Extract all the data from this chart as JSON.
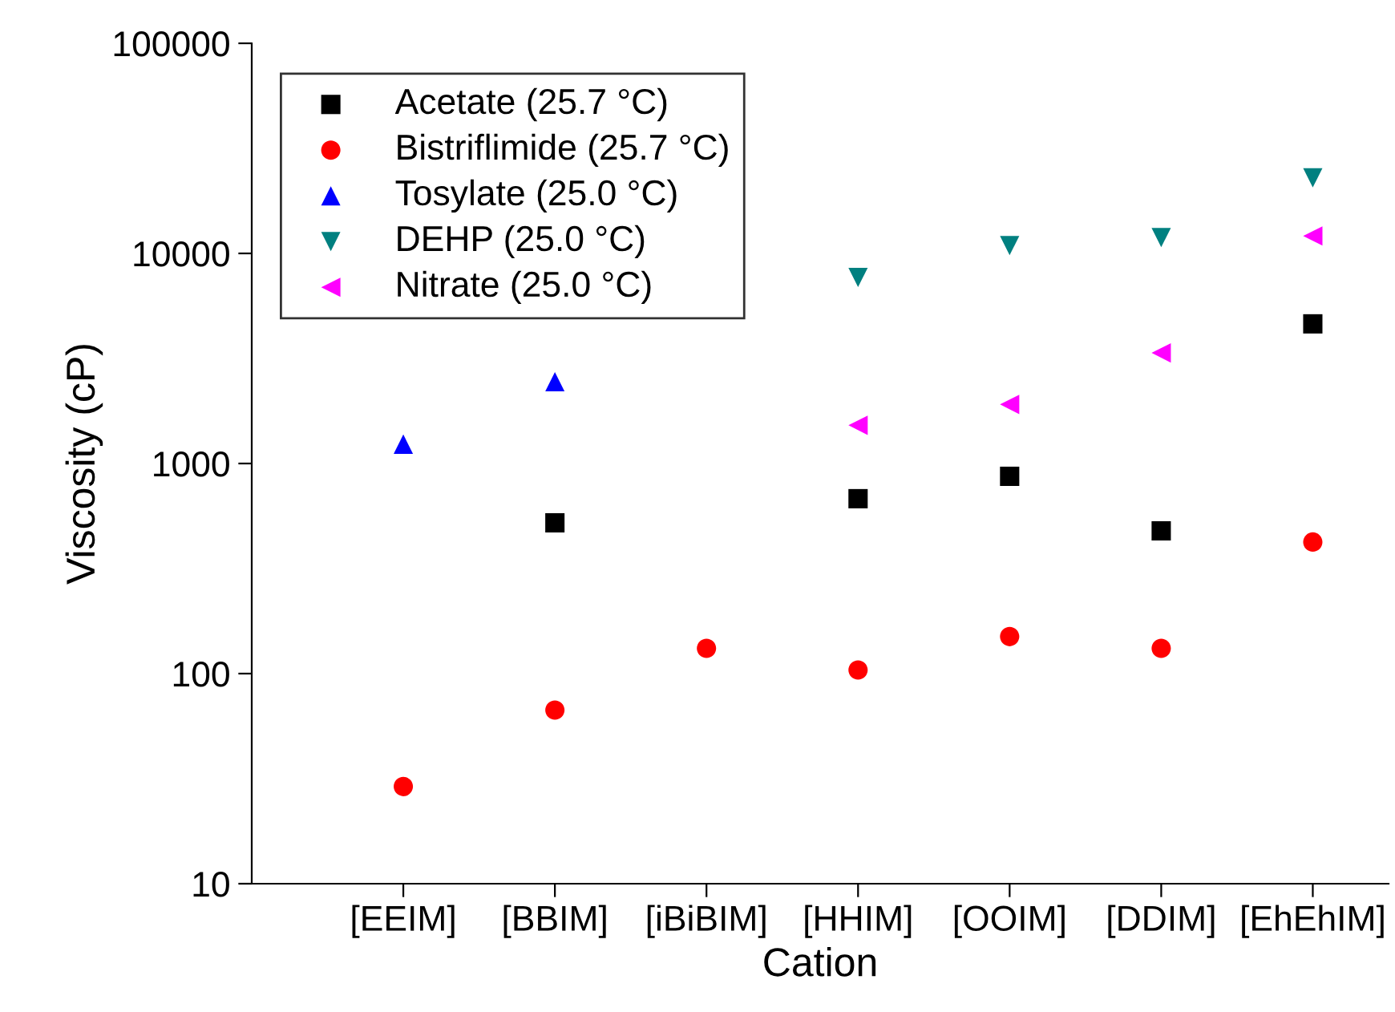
{
  "chart_data": {
    "type": "scatter",
    "xlabel": "Cation",
    "ylabel": "Viscosity (cP)",
    "categories": [
      "[EEIM]",
      "[BBIM]",
      "[iBiBIM]",
      "[HHIM]",
      "[OOIM]",
      "[DDIM]",
      "[EhEhIM]"
    ],
    "series": [
      {
        "name": "Acetate (25.7 °C)",
        "color": "#000000",
        "marker": "square",
        "values": [
          null,
          522,
          null,
          680,
          869,
          478,
          4620
        ]
      },
      {
        "name": "Bistriflimide (25.7 °C)",
        "color": "#ff0000",
        "marker": "circle",
        "values": [
          29,
          67,
          132,
          104,
          150,
          132,
          423
        ]
      },
      {
        "name": "Tosylate (25.0 °C)",
        "color": "#0000ff",
        "marker": "triangle-up",
        "values": [
          1236,
          2450,
          null,
          null,
          null,
          null,
          null
        ]
      },
      {
        "name": "DEHP (25.0 °C)",
        "color": "#008080",
        "marker": "triangle-down",
        "values": [
          null,
          null,
          null,
          7680,
          10900,
          11900,
          22900
        ]
      },
      {
        "name": "Nitrate (25.0 °C)",
        "color": "#ff00ff",
        "marker": "triangle-left",
        "values": [
          null,
          null,
          null,
          1520,
          1910,
          3360,
          12100
        ]
      }
    ],
    "log": "y",
    "ylim": [
      10,
      100000
    ],
    "yticks": [
      10,
      100,
      1000,
      10000,
      100000
    ],
    "grid": false,
    "legend": "top left"
  }
}
